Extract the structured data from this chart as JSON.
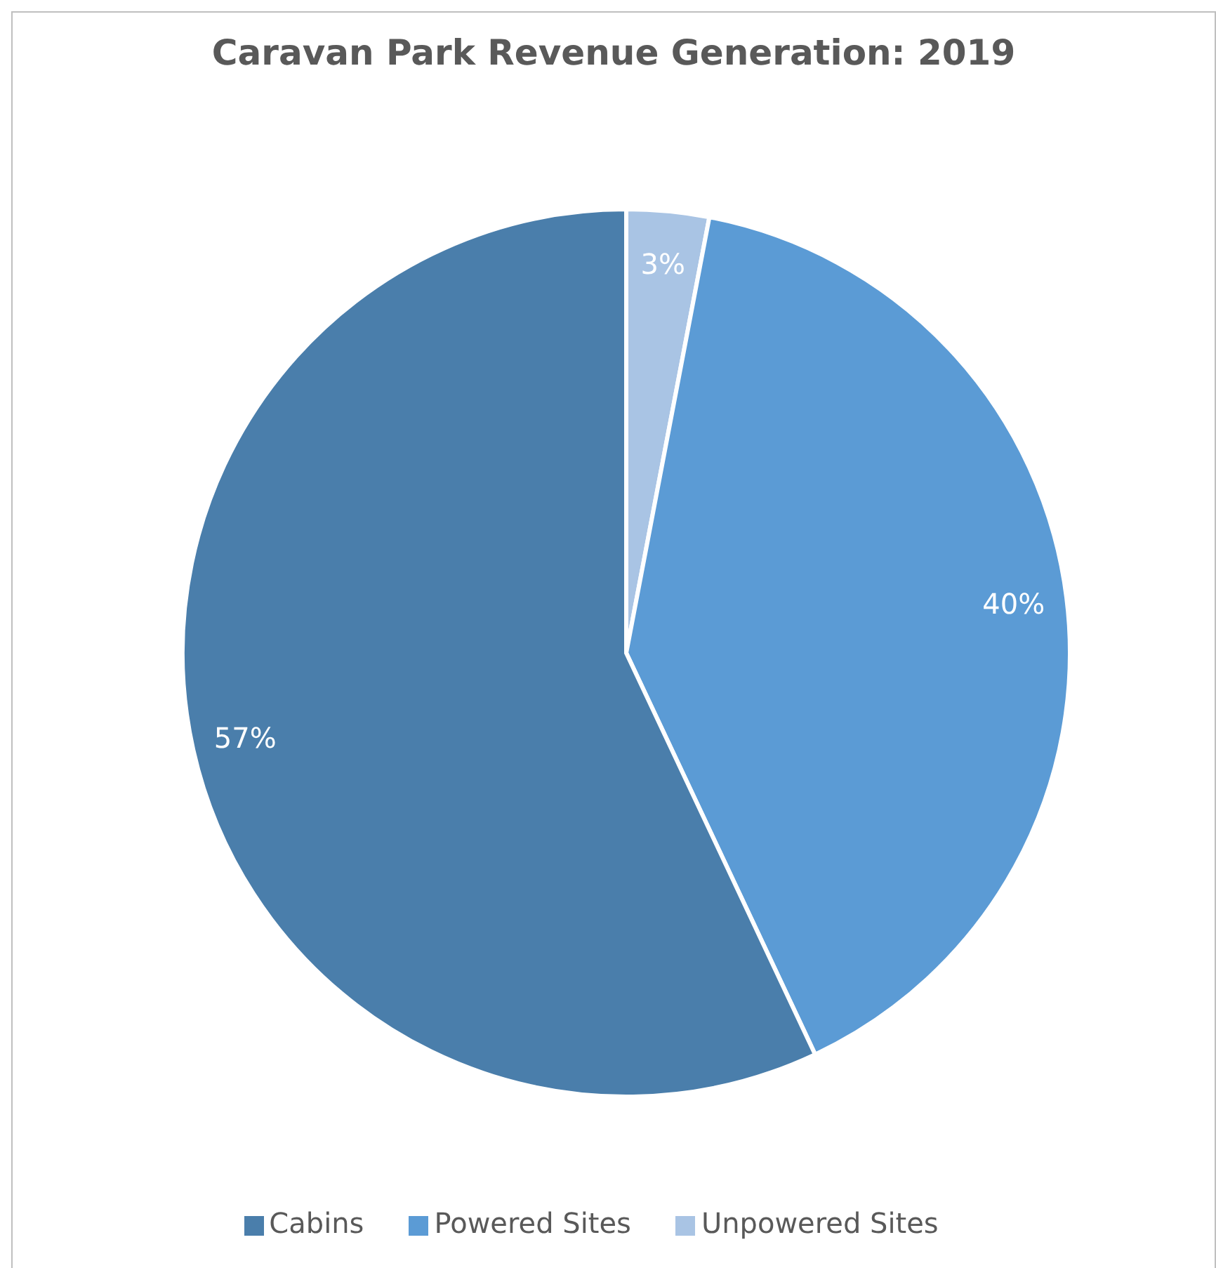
{
  "chart_data": {
    "type": "pie",
    "title": "Caravan Park Revenue Generation: 2019",
    "categories": [
      "Unpowered Sites",
      "Powered Sites",
      "Cabins"
    ],
    "values": [
      3,
      40,
      57
    ],
    "colors": [
      "#a9c4e4",
      "#5b9bd5",
      "#4a7eab"
    ],
    "value_labels": [
      "3%",
      "40%",
      "57%"
    ],
    "legend": "bottom"
  }
}
